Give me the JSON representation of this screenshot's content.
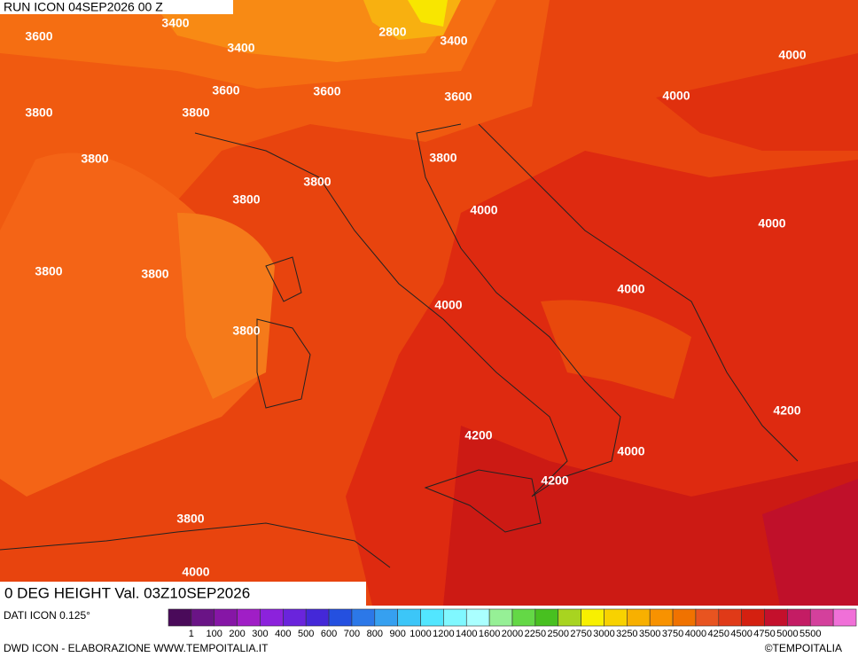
{
  "header": {
    "run": "RUN ICON 04SEP2026 00 Z",
    "title": "0 DEG HEIGHT Val. 03Z10SEP2026"
  },
  "map": {
    "contour_labels": [
      3600,
      3400,
      2800,
      3400,
      3400,
      4000,
      3600,
      3600,
      3600,
      4000,
      3800,
      3800,
      3800,
      3800,
      3800,
      3800,
      4000,
      4000,
      3800,
      3800,
      4000,
      4000,
      3800,
      4200,
      4200,
      4000,
      4200,
      3800,
      4000
    ]
  },
  "legend": {
    "source": "DATI ICON 0.125°",
    "colors": [
      "#4a0a5a",
      "#6a1486",
      "#8616a6",
      "#a01ec6",
      "#8c22dc",
      "#6a24dc",
      "#4428d8",
      "#2450e0",
      "#2c78e8",
      "#36a0f0",
      "#3cc6f8",
      "#52e6ff",
      "#80f8ff",
      "#aaffff",
      "#96f096",
      "#64d846",
      "#48c020",
      "#a8d420",
      "#f8f000",
      "#f8d200",
      "#f8b000",
      "#f89200",
      "#f07200",
      "#e85420",
      "#e03a18",
      "#d42010",
      "#c4102c",
      "#c41c64",
      "#d4409c",
      "#f070d8"
    ],
    "labels": [
      1,
      100,
      200,
      300,
      400,
      500,
      600,
      700,
      800,
      900,
      1000,
      1200,
      1400,
      1600,
      2000,
      2250,
      2500,
      2750,
      3000,
      3250,
      3500,
      3750,
      4000,
      4250,
      4500,
      4750,
      5000,
      5500
    ]
  },
  "footer": {
    "credit": "DWD ICON - ELABORAZIONE WWW.TEMPOITALIA.IT",
    "copyright": "©TEMPOITALIA"
  }
}
